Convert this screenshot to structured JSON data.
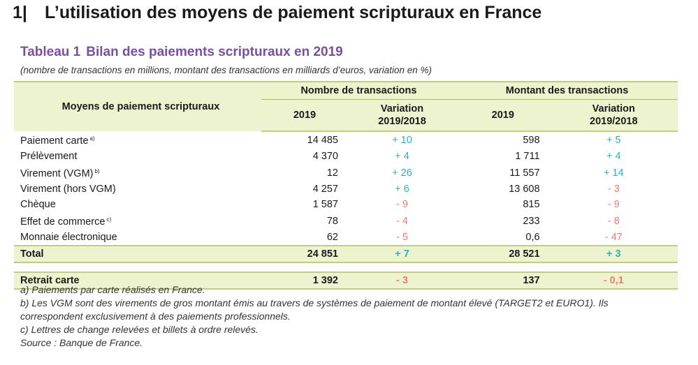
{
  "section": {
    "number": "1|",
    "title": "L’utilisation des moyens de paiement scripturaux en France"
  },
  "table": {
    "label": "Tableau 1",
    "title": "Bilan des paiements scripturaux en 2019",
    "subtitle": "(nombre de transactions en millions, montant des transactions en milliards d’euros, variation en %)",
    "header": {
      "row_label": "Moyens de paiement scripturaux",
      "group1": "Nombre de transactions",
      "group2": "Montant des transactions",
      "year": "2019",
      "variation_line1": "Variation",
      "variation_line2": "2019/2018"
    },
    "rows": [
      {
        "label": "Paiement carte",
        "note": "a)",
        "n2019": "14 485",
        "nvar": "+ 10",
        "m2019": "598",
        "mvar": "+ 5"
      },
      {
        "label": "Prélèvement",
        "note": "",
        "n2019": "4 370",
        "nvar": "+ 4",
        "m2019": "1 711",
        "mvar": "+ 4"
      },
      {
        "label": "Virement (VGM)",
        "note": "b)",
        "n2019": "12",
        "nvar": "+ 26",
        "m2019": "11 557",
        "mvar": "+ 14"
      },
      {
        "label": "Virement (hors VGM)",
        "note": "",
        "n2019": "4 257",
        "nvar": "+ 6",
        "m2019": "13 608",
        "mvar": "- 3"
      },
      {
        "label": "Chèque",
        "note": "",
        "n2019": "1 587",
        "nvar": "- 9",
        "m2019": "815",
        "mvar": "- 9"
      },
      {
        "label": "Effet de commerce",
        "note": "c)",
        "n2019": "78",
        "nvar": "- 4",
        "m2019": "233",
        "mvar": "- 8"
      },
      {
        "label": "Monnaie électronique",
        "note": "",
        "n2019": "62",
        "nvar": "- 5",
        "m2019": "0,6",
        "mvar": "- 47"
      }
    ],
    "total": {
      "label": "Total",
      "n2019": "24 851",
      "nvar": "+ 7",
      "m2019": "28 521",
      "mvar": "+ 3"
    },
    "retrait": {
      "label": "Retrait carte",
      "n2019": "1 392",
      "nvar": "- 3",
      "m2019": "137",
      "mvar": "- 0,1"
    },
    "colors": {
      "positive": "#2ab2bd",
      "negative": "#ef7c70",
      "header_bg": "#eef3cf",
      "title": "#7a4fa0"
    }
  },
  "notes": [
    "a) Paiements par carte réalisés en France.",
    "b) Les VGM sont des virements de gros montant émis au travers de systèmes de paiement de montant élevé (TARGET2 et EURO1). Ils correspondent exclusivement à des paiements professionnels.",
    "c) Lettres de change relevées et billets à ordre relevés.",
    "Source : Banque de France."
  ]
}
